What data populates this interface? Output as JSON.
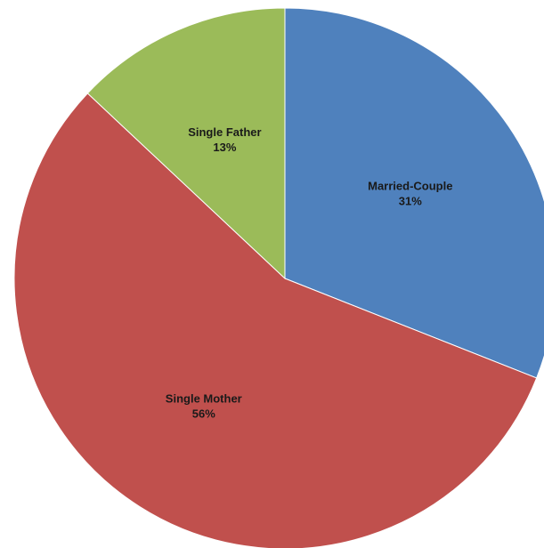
{
  "chart_data": {
    "type": "pie",
    "title": "",
    "start_angle_deg": 0,
    "direction": "clockwise",
    "slices": [
      {
        "name": "Married-Couple",
        "value": 31,
        "label": "31%",
        "color": "#4F81BD"
      },
      {
        "name": "Single Mother",
        "value": 56,
        "label": "56%",
        "color": "#C0504D"
      },
      {
        "name": "Single Father",
        "value": 13,
        "label": "13%",
        "color": "#9BBB59"
      }
    ]
  }
}
